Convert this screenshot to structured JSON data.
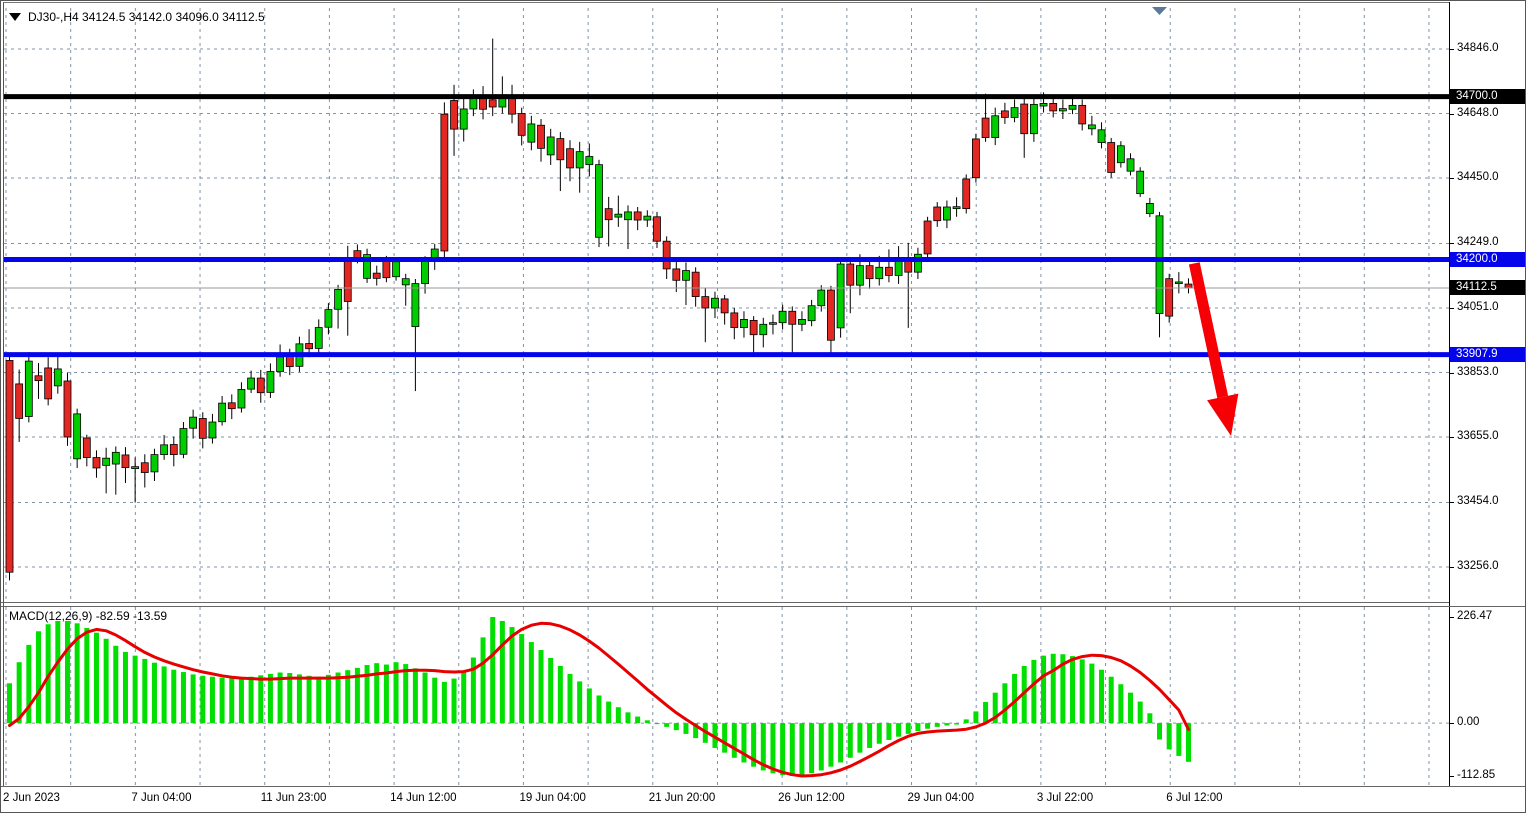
{
  "title": {
    "symbol_period": "DJ30-,H4",
    "ohlc_text": "34124.5 34142.0 34096.0 34112.5",
    "line": "DJ30-,H4  34124.5 34142.0 34096.0 34112.5"
  },
  "indicator_label": "MACD(12,26,9) -82.59 -13.59",
  "colors": {
    "bull": "#00CD00",
    "bear": "#E32824",
    "wick": "#000000",
    "macd_bar": "#00DF00",
    "macd_signal": "#E80000",
    "grid": "#8093A8",
    "hline_black": "#000000",
    "hline_blue": "#0505EB",
    "price_line": "#999999",
    "arrow": "#F60005",
    "badge_black_bg": "#000000",
    "badge_blue_bg": "#0505EB",
    "badge_text": "#FFFFFF"
  },
  "price_axis": {
    "ticks": [
      34846.0,
      34648.0,
      34450.0,
      34249.0,
      34051.0,
      33853.0,
      33655.0,
      33454.0,
      33256.0
    ],
    "tick_labels": [
      "34846.0",
      "34648.0",
      "34450.0",
      "34249.0",
      "34051.0",
      "33853.0",
      "33655.0",
      "33454.0",
      "33256.0"
    ],
    "badges": [
      {
        "label": "34700.0",
        "price": 34700.0,
        "style": "black"
      },
      {
        "label": "34200.0",
        "price": 34200.0,
        "style": "blue"
      },
      {
        "label": "34112.5",
        "price": 34112.5,
        "style": "black"
      },
      {
        "label": "33907.9",
        "price": 33907.9,
        "style": "blue"
      }
    ]
  },
  "macd_axis": {
    "ticks": [
      226.47,
      0.0,
      -112.85
    ],
    "tick_labels": [
      "226.47",
      "0.00",
      "-112.85"
    ]
  },
  "time_axis": {
    "labels": [
      "2 Jun 2023",
      "7 Jun 04:00",
      "11 Jun 23:00",
      "14 Jun 12:00",
      "19 Jun 04:00",
      "21 Jun 20:00",
      "26 Jun 12:00",
      "29 Jun 04:00",
      "3 Jul 22:00",
      "6 Jul 12:00"
    ]
  },
  "chart_data": [
    {
      "type": "candlestick",
      "title": "DJ30-,H4",
      "timeframe": "H4",
      "ylim": [
        33150,
        34930
      ],
      "y_ticks": [
        34846.0,
        33256.0
      ],
      "grid": true,
      "hlines": [
        {
          "price": 34700.0,
          "color": "black",
          "width": 5
        },
        {
          "price": 34200.0,
          "color": "blue",
          "width": 5
        },
        {
          "price": 33907.9,
          "color": "blue",
          "width": 5
        }
      ],
      "current_price": 34112.5,
      "arrow": {
        "from_bar": 122.6,
        "from_price": 34188,
        "to_bar": 126.1,
        "to_price": 33700
      },
      "candles": [
        [
          33890,
          33905,
          33215,
          33240
        ],
        [
          33818,
          33862,
          33640,
          33712
        ],
        [
          33718,
          33916,
          33700,
          33888
        ],
        [
          33843,
          33882,
          33772,
          33828
        ],
        [
          33867,
          33900,
          33752,
          33772
        ],
        [
          33812,
          33902,
          33788,
          33864
        ],
        [
          33827,
          33852,
          33628,
          33655
        ],
        [
          33588,
          33742,
          33560,
          33726
        ],
        [
          33652,
          33662,
          33565,
          33592
        ],
        [
          33592,
          33614,
          33530,
          33560
        ],
        [
          33568,
          33622,
          33482,
          33590
        ],
        [
          33572,
          33626,
          33478,
          33608
        ],
        [
          33600,
          33624,
          33514,
          33561
        ],
        [
          33558,
          33592,
          33454,
          33564
        ],
        [
          33576,
          33602,
          33500,
          33546
        ],
        [
          33548,
          33619,
          33520,
          33601
        ],
        [
          33601,
          33661,
          33585,
          33631
        ],
        [
          33632,
          33656,
          33565,
          33601
        ],
        [
          33602,
          33701,
          33590,
          33681
        ],
        [
          33682,
          33739,
          33650,
          33716
        ],
        [
          33712,
          33731,
          33620,
          33651
        ],
        [
          33652,
          33726,
          33635,
          33701
        ],
        [
          33702,
          33781,
          33690,
          33759
        ],
        [
          33760,
          33786,
          33710,
          33742
        ],
        [
          33744,
          33823,
          33730,
          33801
        ],
        [
          33802,
          33859,
          33790,
          33836
        ],
        [
          33836,
          33861,
          33760,
          33791
        ],
        [
          33792,
          33881,
          33775,
          33856
        ],
        [
          33856,
          33939,
          33840,
          33901
        ],
        [
          33902,
          33926,
          33845,
          33871
        ],
        [
          33872,
          33963,
          33855,
          33941
        ],
        [
          33942,
          33986,
          33900,
          33926
        ],
        [
          33927,
          34016,
          33910,
          33991
        ],
        [
          33992,
          34066,
          33970,
          34046
        ],
        [
          34047,
          34122,
          33988,
          34108
        ],
        [
          34199,
          34242,
          33966,
          34071
        ],
        [
          34227,
          34246,
          34188,
          34206
        ],
        [
          34142,
          34233,
          34128,
          34215
        ],
        [
          34158,
          34181,
          34120,
          34142
        ],
        [
          34196,
          34211,
          34130,
          34144
        ],
        [
          34147,
          34206,
          34135,
          34193
        ],
        [
          34122,
          34156,
          34058,
          34141
        ],
        [
          33994,
          34140,
          33796,
          34126
        ],
        [
          34126,
          34210,
          34095,
          34198
        ],
        [
          34198,
          34248,
          34168,
          34232
        ],
        [
          34646,
          34682,
          34195,
          34226
        ],
        [
          34688,
          34736,
          34518,
          34600
        ],
        [
          34600,
          34702,
          34562,
          34662
        ],
        [
          34662,
          34722,
          34640,
          34696
        ],
        [
          34700,
          34732,
          34630,
          34661
        ],
        [
          34690,
          34878,
          34640,
          34668
        ],
        [
          34668,
          34762,
          34648,
          34701
        ],
        [
          34701,
          34736,
          34618,
          34646
        ],
        [
          34648,
          34666,
          34550,
          34581
        ],
        [
          34560,
          34641,
          34535,
          34616
        ],
        [
          34612,
          34631,
          34500,
          34541
        ],
        [
          34521,
          34601,
          34490,
          34576
        ],
        [
          34571,
          34591,
          34410,
          34506
        ],
        [
          34540,
          34566,
          34440,
          34481
        ],
        [
          34481,
          34561,
          34405,
          34531
        ],
        [
          34491,
          34556,
          34455,
          34516
        ],
        [
          34268,
          34506,
          34238,
          34491
        ],
        [
          34356,
          34392,
          34240,
          34322
        ],
        [
          34330,
          34396,
          34300,
          34339
        ],
        [
          34322,
          34366,
          34232,
          34346
        ],
        [
          34346,
          34361,
          34290,
          34321
        ],
        [
          34321,
          34351,
          34300,
          34333
        ],
        [
          34331,
          34346,
          34235,
          34256
        ],
        [
          34256,
          34271,
          34140,
          34171
        ],
        [
          34171,
          34201,
          34100,
          34136
        ],
        [
          34136,
          34191,
          34060,
          34166
        ],
        [
          34161,
          34176,
          34055,
          34086
        ],
        [
          34086,
          34111,
          33946,
          34051
        ],
        [
          34051,
          34101,
          34020,
          34081
        ],
        [
          34079,
          34091,
          34000,
          34036
        ],
        [
          34036,
          34051,
          33955,
          33991
        ],
        [
          33991,
          34041,
          33960,
          34016
        ],
        [
          34013,
          34026,
          33906,
          33969
        ],
        [
          33969,
          34021,
          33930,
          34001
        ],
        [
          34001,
          34031,
          33970,
          34006
        ],
        [
          34006,
          34061,
          33985,
          34041
        ],
        [
          34041,
          34056,
          33912,
          34001
        ],
        [
          34001,
          34041,
          33980,
          34016
        ],
        [
          34012,
          34076,
          33995,
          34058
        ],
        [
          34058,
          34121,
          34040,
          34106
        ],
        [
          34106,
          34119,
          33908,
          33952
        ],
        [
          33990,
          34201,
          33960,
          34186
        ],
        [
          34186,
          34201,
          34035,
          34121
        ],
        [
          34121,
          34216,
          34090,
          34181
        ],
        [
          34181,
          34196,
          34110,
          34141
        ],
        [
          34141,
          34211,
          34120,
          34176
        ],
        [
          34176,
          34231,
          34130,
          34151
        ],
        [
          34151,
          34241,
          34125,
          34196
        ],
        [
          34196,
          34251,
          33990,
          34161
        ],
        [
          34161,
          34236,
          34140,
          34216
        ],
        [
          34318,
          34331,
          34195,
          34217
        ],
        [
          34361,
          34376,
          34300,
          34319
        ],
        [
          34321,
          34381,
          34296,
          34361
        ],
        [
          34356,
          34391,
          34331,
          34362
        ],
        [
          34447,
          34461,
          34341,
          34356
        ],
        [
          34570,
          34586,
          34436,
          34451
        ],
        [
          34634,
          34709,
          34561,
          34574
        ],
        [
          34574,
          34666,
          34551,
          34641
        ],
        [
          34656,
          34681,
          34616,
          34636
        ],
        [
          34636,
          34691,
          34621,
          34666
        ],
        [
          34677,
          34696,
          34512,
          34586
        ],
        [
          34586,
          34701,
          34561,
          34676
        ],
        [
          34671,
          34713,
          34651,
          34679
        ],
        [
          34679,
          34699,
          34636,
          34656
        ],
        [
          34656,
          34691,
          34631,
          34663
        ],
        [
          34661,
          34696,
          34646,
          34673
        ],
        [
          34673,
          34691,
          34596,
          34616
        ],
        [
          34601,
          34641,
          34581,
          34613
        ],
        [
          34559,
          34621,
          34541,
          34598
        ],
        [
          34559,
          34573,
          34451,
          34467
        ],
        [
          34497,
          34563,
          34482,
          34549
        ],
        [
          34471,
          34526,
          34458,
          34509
        ],
        [
          34402,
          34483,
          34392,
          34471
        ],
        [
          34341,
          34389,
          34330,
          34372
        ],
        [
          34034,
          34346,
          33961,
          34334
        ],
        [
          34141,
          34156,
          34006,
          34026
        ],
        [
          34126,
          34161,
          34096,
          34131
        ],
        [
          34124.5,
          34142.0,
          34096.0,
          34112.5
        ]
      ]
    },
    {
      "type": "macd_histogram",
      "params": [
        12,
        26,
        9
      ],
      "last_macd": -82.59,
      "last_signal": -13.59,
      "ylim": [
        -135,
        250
      ],
      "y_ticks": [
        226.47,
        0.0,
        -112.85
      ],
      "values": [
        85,
        130,
        167,
        196,
        211,
        218,
        218,
        213,
        203,
        193,
        180,
        165,
        152,
        144,
        137,
        129,
        121,
        114,
        109,
        104,
        101,
        99,
        97,
        96,
        97,
        99,
        102,
        105,
        108,
        107,
        104,
        101,
        99,
        103,
        108,
        113,
        118,
        124,
        128,
        125,
        130,
        126,
        117,
        108,
        97,
        88,
        95,
        110,
        140,
        183,
        226.47,
        218,
        205,
        190,
        173,
        156,
        139,
        122,
        105,
        89,
        74,
        59,
        46,
        34,
        23,
        14,
        6,
        -2,
        -8,
        -15,
        -23,
        -32,
        -42,
        -53,
        -63,
        -74,
        -84,
        -93,
        -101,
        -107,
        -111,
        -112.85,
        -111,
        -107,
        -101,
        -93,
        -84,
        -74,
        -63,
        -53,
        -44,
        -36,
        -29,
        -23,
        -17,
        -12,
        -8,
        -5,
        -3,
        8,
        25,
        45,
        65,
        85,
        105,
        122,
        135,
        144,
        148,
        147,
        143,
        136,
        127,
        114,
        99,
        83,
        65,
        46,
        21,
        -35,
        -56,
        -70,
        -82.59
      ],
      "signal": [
        -5,
        10,
        35,
        65,
        100,
        130,
        158,
        180,
        194,
        200,
        197,
        188,
        176,
        163,
        151,
        141,
        133,
        126,
        120,
        114,
        109,
        105,
        101,
        98,
        96,
        95,
        94,
        94,
        95,
        96,
        96,
        96,
        96,
        96,
        97,
        98,
        100,
        102,
        105,
        107,
        110,
        112,
        113,
        113,
        112,
        110,
        109,
        110,
        115,
        128,
        146,
        167,
        186,
        200,
        209,
        213,
        212,
        207,
        199,
        188,
        175,
        160,
        143,
        126,
        108,
        90,
        72,
        55,
        38,
        22,
        8,
        -5,
        -18,
        -30,
        -42,
        -54,
        -66,
        -78,
        -89,
        -98,
        -105,
        -110,
        -112.8,
        -112,
        -110,
        -106,
        -100,
        -92,
        -82,
        -71,
        -60,
        -48,
        -37,
        -28,
        -22,
        -19,
        -17,
        -16,
        -15,
        -13,
        -8,
        0,
        12,
        28,
        46,
        65,
        84,
        101,
        112,
        126,
        136,
        142,
        145,
        144,
        140,
        133,
        122,
        108,
        91,
        72,
        50,
        28,
        -13.59
      ]
    }
  ]
}
